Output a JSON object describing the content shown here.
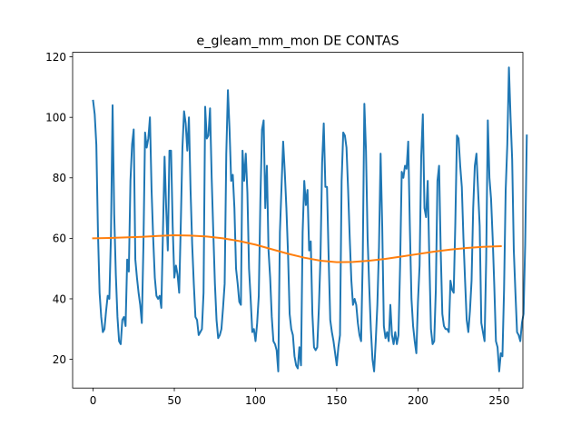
{
  "chart_data": {
    "type": "line",
    "title": "e_gleam_mm_mon DE CONTAS",
    "xlabel": "",
    "ylabel": "",
    "xlim": [
      -12.6,
      264.6
    ],
    "ylim": [
      10.5,
      121.5
    ],
    "xticks": [
      0,
      50,
      100,
      150,
      200,
      250
    ],
    "yticks": [
      20,
      40,
      60,
      80,
      100,
      120
    ],
    "grid": false,
    "legend": "none",
    "colors": {
      "series_0": "#1f77b4",
      "series_1": "#ff7f0e"
    },
    "series": [
      {
        "values": [
          105.5,
          101,
          91,
          62,
          42,
          34,
          29,
          30,
          36,
          41,
          40,
          61,
          104,
          68,
          48,
          34,
          26,
          25,
          33,
          34,
          31,
          53,
          49,
          79,
          91,
          96,
          53,
          47,
          42,
          38,
          32,
          58,
          95,
          90,
          93,
          100,
          76,
          60,
          47,
          41,
          40,
          41,
          37,
          62,
          87,
          70,
          56,
          89,
          89,
          64,
          47,
          51,
          48,
          42,
          65,
          90,
          102,
          98,
          89,
          100,
          76,
          58,
          45,
          34,
          33,
          28,
          29,
          30,
          42,
          103.5,
          93,
          94,
          103,
          80,
          62,
          45,
          33,
          27,
          28,
          30,
          37,
          45,
          88,
          109,
          96,
          79,
          81,
          70,
          50,
          45,
          39,
          38,
          89,
          79,
          88,
          75,
          50,
          40,
          29,
          30,
          26,
          32,
          41,
          73,
          96,
          99,
          70,
          84,
          56,
          47,
          34,
          26,
          25,
          23,
          16,
          62,
          77,
          92,
          82,
          70,
          55,
          35,
          30,
          28,
          21,
          18,
          17,
          24,
          18,
          62,
          79,
          71,
          76,
          56,
          59,
          35,
          24,
          23,
          24,
          37,
          54,
          85,
          98,
          77,
          77,
          54,
          33,
          29,
          26,
          22,
          18,
          24,
          28,
          79,
          95,
          94,
          90,
          76,
          60,
          46,
          38,
          40,
          38,
          32,
          28,
          26,
          53,
          104.5,
          89,
          60,
          44,
          30,
          20,
          16,
          26,
          38,
          57,
          88,
          64,
          31,
          27,
          29,
          26,
          38,
          28,
          25,
          29,
          25,
          28,
          51,
          82,
          80,
          84,
          83,
          92,
          64,
          40,
          31,
          26,
          22,
          39,
          51,
          87,
          101,
          70,
          67,
          79,
          53,
          30,
          25,
          26,
          43,
          79,
          84,
          56,
          35,
          31,
          30,
          30,
          29,
          46,
          43,
          42,
          65,
          94,
          93,
          84,
          77,
          60,
          46,
          33,
          29,
          36,
          46,
          70,
          84,
          88,
          76,
          64,
          32,
          29,
          26,
          53,
          99,
          80,
          73,
          60,
          44,
          26,
          24,
          16,
          22,
          21,
          43,
          76,
          91,
          116.5,
          100,
          86,
          56,
          42,
          29,
          28,
          26,
          32,
          35,
          58,
          94
        ],
        "x_start": 0,
        "x_step": 1
      },
      {
        "x": [
          0,
          10,
          20,
          30,
          40,
          50,
          60,
          70,
          80,
          90,
          100,
          110,
          120,
          130,
          140,
          150,
          160,
          170,
          180,
          190,
          200,
          210,
          220,
          230,
          240,
          251
        ],
        "values": [
          60.0,
          60.1,
          60.3,
          60.5,
          60.8,
          61.0,
          60.9,
          60.6,
          60.0,
          59.1,
          57.9,
          56.4,
          54.9,
          53.6,
          52.6,
          52.1,
          52.2,
          52.6,
          53.2,
          54.0,
          54.8,
          55.6,
          56.3,
          56.8,
          57.2,
          57.4
        ]
      }
    ]
  }
}
